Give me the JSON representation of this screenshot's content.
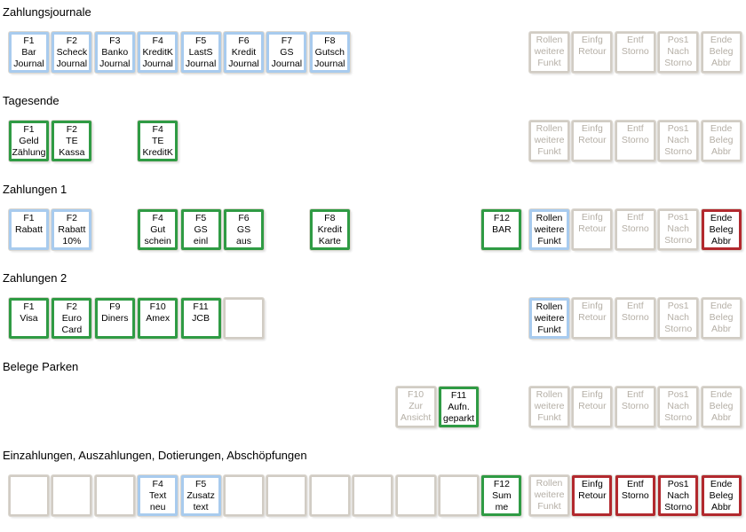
{
  "palette": {
    "blue": "#a8cbee",
    "green": "#2f9b44",
    "red": "#b2292e",
    "disabled_border": "#d1ccc4",
    "empty_border": "#d1ccc4",
    "disabled_text": "#b5afa6",
    "label_text": "#000000",
    "heading_text": "#000000",
    "key_background": "#ffffff"
  },
  "sections": [
    {
      "title": "Zahlungsjournale",
      "buttons": [
        {
          "slot": 0,
          "variant": "blue",
          "name": "key-f1-bar-journal",
          "interactable": true,
          "lines": [
            "F1",
            "Bar",
            "Journal"
          ]
        },
        {
          "slot": 1,
          "variant": "blue",
          "name": "key-f2-scheck-journal",
          "interactable": true,
          "lines": [
            "F2",
            "Scheck",
            "Journal"
          ]
        },
        {
          "slot": 2,
          "variant": "blue",
          "name": "key-f3-banko-journal",
          "interactable": true,
          "lines": [
            "F3",
            "Banko",
            "Journal"
          ]
        },
        {
          "slot": 3,
          "variant": "blue",
          "name": "key-f4-kreditk-journal",
          "interactable": true,
          "lines": [
            "F4",
            "KreditK",
            "Journal"
          ]
        },
        {
          "slot": 4,
          "variant": "blue",
          "name": "key-f5-lasts-journal",
          "interactable": true,
          "lines": [
            "F5",
            "LastS",
            "Journal"
          ]
        },
        {
          "slot": 5,
          "variant": "blue",
          "name": "key-f6-kredit-journal",
          "interactable": true,
          "lines": [
            "F6",
            "Kredit",
            "Journal"
          ]
        },
        {
          "slot": 6,
          "variant": "blue",
          "name": "key-f7-gs-journal",
          "interactable": true,
          "lines": [
            "F7",
            "GS",
            "Journal"
          ]
        },
        {
          "slot": 7,
          "variant": "blue",
          "name": "key-f8-gutsch-journal",
          "interactable": true,
          "lines": [
            "F8",
            "Gutsch",
            "Journal"
          ]
        },
        {
          "slot": 12,
          "variant": "disabled",
          "name": "key-rollen-weitere-funkt",
          "interactable": false,
          "lines": [
            "Rollen",
            "weitere",
            "Funkt"
          ]
        },
        {
          "slot": 13,
          "variant": "disabled",
          "name": "key-einfg-retour",
          "interactable": false,
          "lines": [
            "Einfg",
            "Retour"
          ]
        },
        {
          "slot": 14,
          "variant": "disabled",
          "name": "key-entf-storno",
          "interactable": false,
          "lines": [
            "Entf",
            "Storno"
          ]
        },
        {
          "slot": 15,
          "variant": "disabled",
          "name": "key-pos1-nach-storno",
          "interactable": false,
          "lines": [
            "Pos1",
            "Nach",
            "Storno"
          ]
        },
        {
          "slot": 16,
          "variant": "disabled",
          "name": "key-ende-beleg-abbr",
          "interactable": false,
          "lines": [
            "Ende",
            "Beleg",
            "Abbr"
          ]
        }
      ]
    },
    {
      "title": "Tagesende",
      "buttons": [
        {
          "slot": 0,
          "variant": "green",
          "name": "key-f1-geld-zaehlung",
          "interactable": true,
          "lines": [
            "F1",
            "Geld",
            "Zählung"
          ]
        },
        {
          "slot": 1,
          "variant": "green",
          "name": "key-f2-te-kassa",
          "interactable": true,
          "lines": [
            "F2",
            "TE",
            "Kassa"
          ]
        },
        {
          "slot": 3,
          "variant": "green",
          "name": "key-f4-te-kreditk",
          "interactable": true,
          "lines": [
            "F4",
            "TE",
            "KreditK"
          ]
        },
        {
          "slot": 12,
          "variant": "disabled",
          "name": "key-rollen-weitere-funkt",
          "interactable": false,
          "lines": [
            "Rollen",
            "weitere",
            "Funkt"
          ]
        },
        {
          "slot": 13,
          "variant": "disabled",
          "name": "key-einfg-retour",
          "interactable": false,
          "lines": [
            "Einfg",
            "Retour"
          ]
        },
        {
          "slot": 14,
          "variant": "disabled",
          "name": "key-entf-storno",
          "interactable": false,
          "lines": [
            "Entf",
            "Storno"
          ]
        },
        {
          "slot": 15,
          "variant": "disabled",
          "name": "key-pos1-nach-storno",
          "interactable": false,
          "lines": [
            "Pos1",
            "Nach",
            "Storno"
          ]
        },
        {
          "slot": 16,
          "variant": "disabled",
          "name": "key-ende-beleg-abbr",
          "interactable": false,
          "lines": [
            "Ende",
            "Beleg",
            "Abbr"
          ]
        }
      ]
    },
    {
      "title": "Zahlungen 1",
      "buttons": [
        {
          "slot": 0,
          "variant": "blue",
          "name": "key-f1-rabatt",
          "interactable": true,
          "lines": [
            "F1",
            "Rabatt"
          ]
        },
        {
          "slot": 1,
          "variant": "blue",
          "name": "key-f2-rabatt-10",
          "interactable": true,
          "lines": [
            "F2",
            "Rabatt",
            "10%"
          ]
        },
        {
          "slot": 3,
          "variant": "green",
          "name": "key-f4-gutschein",
          "interactable": true,
          "lines": [
            "F4",
            "Gut",
            "schein"
          ]
        },
        {
          "slot": 4,
          "variant": "green",
          "name": "key-f5-gs-einl",
          "interactable": true,
          "lines": [
            "F5",
            "GS",
            "einl"
          ]
        },
        {
          "slot": 5,
          "variant": "green",
          "name": "key-f6-gs-aus",
          "interactable": true,
          "lines": [
            "F6",
            "GS",
            "aus"
          ]
        },
        {
          "slot": 7,
          "variant": "green",
          "name": "key-f8-kredit-karte",
          "interactable": true,
          "lines": [
            "F8",
            "Kredit",
            "Karte"
          ]
        },
        {
          "slot": 11,
          "variant": "green",
          "name": "key-f12-bar",
          "interactable": true,
          "lines": [
            "F12",
            "BAR"
          ]
        },
        {
          "slot": 12,
          "variant": "blue",
          "name": "key-rollen-weitere-funkt",
          "interactable": true,
          "lines": [
            "Rollen",
            "weitere",
            "Funkt"
          ]
        },
        {
          "slot": 13,
          "variant": "disabled",
          "name": "key-einfg-retour",
          "interactable": false,
          "lines": [
            "Einfg",
            "Retour"
          ]
        },
        {
          "slot": 14,
          "variant": "disabled",
          "name": "key-entf-storno",
          "interactable": false,
          "lines": [
            "Entf",
            "Storno"
          ]
        },
        {
          "slot": 15,
          "variant": "disabled",
          "name": "key-pos1-nach-storno",
          "interactable": false,
          "lines": [
            "Pos1",
            "Nach",
            "Storno"
          ]
        },
        {
          "slot": 16,
          "variant": "red",
          "name": "key-ende-beleg-abbr",
          "interactable": true,
          "lines": [
            "Ende",
            "Beleg",
            "Abbr"
          ]
        }
      ]
    },
    {
      "title": "Zahlungen 2",
      "buttons": [
        {
          "slot": 0,
          "variant": "green",
          "name": "key-f1-visa",
          "interactable": true,
          "lines": [
            "F1",
            "Visa"
          ]
        },
        {
          "slot": 1,
          "variant": "green",
          "name": "key-f2-euro-card",
          "interactable": true,
          "lines": [
            "F2",
            "Euro",
            "Card"
          ]
        },
        {
          "slot": 2,
          "variant": "green",
          "name": "key-f9-diners",
          "interactable": true,
          "lines": [
            "F9",
            "Diners"
          ]
        },
        {
          "slot": 3,
          "variant": "green",
          "name": "key-f10-amex",
          "interactable": true,
          "lines": [
            "F10",
            "Amex"
          ]
        },
        {
          "slot": 4,
          "variant": "green",
          "name": "key-f11-jcb",
          "interactable": true,
          "lines": [
            "F11",
            "JCB"
          ]
        },
        {
          "slot": 5,
          "variant": "empty",
          "name": "key-empty-slot",
          "interactable": false,
          "lines": []
        },
        {
          "slot": 12,
          "variant": "blue",
          "name": "key-rollen-weitere-funkt",
          "interactable": true,
          "lines": [
            "Rollen",
            "weitere",
            "Funkt"
          ]
        },
        {
          "slot": 13,
          "variant": "disabled",
          "name": "key-einfg-retour",
          "interactable": false,
          "lines": [
            "Einfg",
            "Retour"
          ]
        },
        {
          "slot": 14,
          "variant": "disabled",
          "name": "key-entf-storno",
          "interactable": false,
          "lines": [
            "Entf",
            "Storno"
          ]
        },
        {
          "slot": 15,
          "variant": "disabled",
          "name": "key-pos1-nach-storno",
          "interactable": false,
          "lines": [
            "Pos1",
            "Nach",
            "Storno"
          ]
        },
        {
          "slot": 16,
          "variant": "disabled",
          "name": "key-ende-beleg-abbr",
          "interactable": false,
          "lines": [
            "Ende",
            "Beleg",
            "Abbr"
          ]
        }
      ]
    },
    {
      "title": "Belege Parken",
      "buttons": [
        {
          "slot": 9,
          "variant": "disabled",
          "name": "key-f10-zur-ansicht",
          "interactable": false,
          "lines": [
            "F10",
            "Zur",
            "Ansicht"
          ]
        },
        {
          "slot": 10,
          "variant": "green",
          "name": "key-f11-aufn-geparkt",
          "interactable": true,
          "lines": [
            "F11",
            "Aufn.",
            "geparkt"
          ]
        },
        {
          "slot": 12,
          "variant": "disabled",
          "name": "key-rollen-weitere-funkt",
          "interactable": false,
          "lines": [
            "Rollen",
            "weitere",
            "Funkt"
          ]
        },
        {
          "slot": 13,
          "variant": "disabled",
          "name": "key-einfg-retour",
          "interactable": false,
          "lines": [
            "Einfg",
            "Retour"
          ]
        },
        {
          "slot": 14,
          "variant": "disabled",
          "name": "key-entf-storno",
          "interactable": false,
          "lines": [
            "Entf",
            "Storno"
          ]
        },
        {
          "slot": 15,
          "variant": "disabled",
          "name": "key-pos1-nach-storno",
          "interactable": false,
          "lines": [
            "Pos1",
            "Nach",
            "Storno"
          ]
        },
        {
          "slot": 16,
          "variant": "disabled",
          "name": "key-ende-beleg-abbr",
          "interactable": false,
          "lines": [
            "Ende",
            "Beleg",
            "Abbr"
          ]
        }
      ]
    },
    {
      "title": "Einzahlungen, Auszahlungen, Dotierungen, Abschöpfungen",
      "buttons": [
        {
          "slot": 0,
          "variant": "empty",
          "name": "key-empty-slot",
          "interactable": false,
          "lines": []
        },
        {
          "slot": 1,
          "variant": "empty",
          "name": "key-empty-slot",
          "interactable": false,
          "lines": []
        },
        {
          "slot": 2,
          "variant": "empty",
          "name": "key-empty-slot",
          "interactable": false,
          "lines": []
        },
        {
          "slot": 3,
          "variant": "blue",
          "name": "key-f4-text-neu",
          "interactable": true,
          "lines": [
            "F4",
            "Text",
            "neu"
          ]
        },
        {
          "slot": 4,
          "variant": "blue",
          "name": "key-f5-zusatz-text",
          "interactable": true,
          "lines": [
            "F5",
            "Zusatz",
            "text"
          ]
        },
        {
          "slot": 5,
          "variant": "empty",
          "name": "key-empty-slot",
          "interactable": false,
          "lines": []
        },
        {
          "slot": 6,
          "variant": "empty",
          "name": "key-empty-slot",
          "interactable": false,
          "lines": []
        },
        {
          "slot": 7,
          "variant": "empty",
          "name": "key-empty-slot",
          "interactable": false,
          "lines": []
        },
        {
          "slot": 8,
          "variant": "empty",
          "name": "key-empty-slot",
          "interactable": false,
          "lines": []
        },
        {
          "slot": 9,
          "variant": "empty",
          "name": "key-empty-slot",
          "interactable": false,
          "lines": []
        },
        {
          "slot": 10,
          "variant": "empty",
          "name": "key-empty-slot",
          "interactable": false,
          "lines": []
        },
        {
          "slot": 11,
          "variant": "green",
          "name": "key-f12-summe",
          "interactable": true,
          "lines": [
            "F12",
            "Sum",
            "me"
          ]
        },
        {
          "slot": 12,
          "variant": "disabled",
          "name": "key-rollen-weitere-funkt",
          "interactable": false,
          "lines": [
            "Rollen",
            "weitere",
            "Funkt"
          ]
        },
        {
          "slot": 13,
          "variant": "red",
          "name": "key-einfg-retour",
          "interactable": true,
          "lines": [
            "Einfg",
            "Retour"
          ]
        },
        {
          "slot": 14,
          "variant": "red",
          "name": "key-entf-storno",
          "interactable": true,
          "lines": [
            "Entf",
            "Storno"
          ]
        },
        {
          "slot": 15,
          "variant": "red",
          "name": "key-pos1-nach-storno",
          "interactable": true,
          "lines": [
            "Pos1",
            "Nach",
            "Storno"
          ]
        },
        {
          "slot": 16,
          "variant": "red",
          "name": "key-ende-beleg-abbr",
          "interactable": true,
          "lines": [
            "Ende",
            "Beleg",
            "Abbr"
          ]
        }
      ]
    }
  ]
}
